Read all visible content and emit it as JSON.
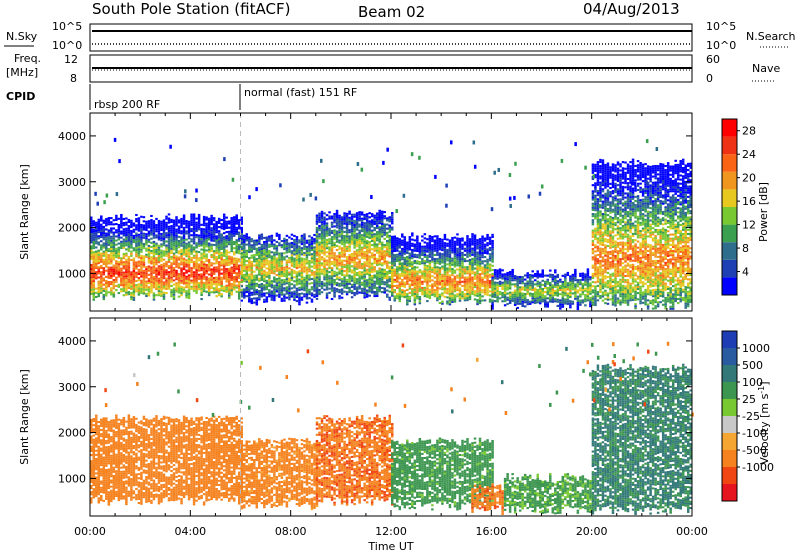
{
  "header": {
    "station": "South Pole Station (fitACF)",
    "beam": "Beam 02",
    "date": "04/Aug/2013"
  },
  "top_panels": {
    "nsky_label": "N.Sky",
    "nsky_ticks": [
      "10^5",
      "10^0"
    ],
    "nsearch_label": "N.Search",
    "nsearch_ticks": [
      "10^5",
      "10^0"
    ],
    "freq_label": "Freq.",
    "freq_unit": "[MHz]",
    "freq_ticks": [
      "12",
      "8"
    ],
    "nave_label": "Nave",
    "nave_ticks": [
      "60",
      "0"
    ],
    "cpid_label": "CPID",
    "cpid_segments": [
      "rbsp 200 RF",
      "normal (fast) 151 RF"
    ]
  },
  "colors": {
    "power_scale": [
      "#0000ff",
      "#1f3fb5",
      "#2e6e8c",
      "#3aa050",
      "#78c832",
      "#e6c81e",
      "#f0961e",
      "#fa6414",
      "#f03214",
      "#ff0000"
    ],
    "velocity_scale": [
      "#e6141e",
      "#f04614",
      "#f5821e",
      "#f5a532",
      "#c8c8c8",
      "#78c832",
      "#3c9650",
      "#327878",
      "#2a5aa0",
      "#1e3cb4"
    ]
  },
  "chart_data": [
    {
      "type": "heatmap",
      "name": "power-panel",
      "ylabel": "Slant Range [km]",
      "xlabel": "Time UT",
      "x_ticks": [
        "00:00",
        "04:00",
        "08:00",
        "12:00",
        "16:00",
        "20:00",
        "00:00"
      ],
      "y_ticks": [
        "1000",
        "2000",
        "3000",
        "4000"
      ],
      "xlim_hours": [
        0,
        24
      ],
      "ylim_km": [
        180,
        4500
      ],
      "colorbar_label": "Power [dB]",
      "colorbar_ticks": [
        "4",
        "8",
        "12",
        "16",
        "20",
        "24",
        "28"
      ],
      "colorbar_range": [
        0,
        30
      ],
      "cpid_change_hour": 6.0,
      "echo_regions": [
        {
          "t0": 0.0,
          "t1": 6.0,
          "r0": 500,
          "r1": 2200,
          "peak_km": 1000,
          "peak_db": 26
        },
        {
          "t0": 6.0,
          "t1": 9.0,
          "r0": 400,
          "r1": 1800,
          "peak_km": 1100,
          "peak_db": 18
        },
        {
          "t0": 9.0,
          "t1": 12.0,
          "r0": 500,
          "r1": 2300,
          "peak_km": 1300,
          "peak_db": 20
        },
        {
          "t0": 12.0,
          "t1": 16.0,
          "r0": 400,
          "r1": 1800,
          "peak_km": 800,
          "peak_db": 22
        },
        {
          "t0": 16.0,
          "t1": 20.0,
          "r0": 300,
          "r1": 1000,
          "peak_km": 600,
          "peak_db": 16
        },
        {
          "t0": 20.0,
          "t1": 24.0,
          "r0": 300,
          "r1": 3400,
          "peak_km": 1300,
          "peak_db": 22
        }
      ]
    },
    {
      "type": "heatmap",
      "name": "velocity-panel",
      "ylabel": "Slant Range [km]",
      "xlabel": "Time UT",
      "x_ticks": [
        "00:00",
        "04:00",
        "08:00",
        "12:00",
        "16:00",
        "20:00",
        "00:00"
      ],
      "y_ticks": [
        "1000",
        "2000",
        "3000",
        "4000"
      ],
      "xlim_hours": [
        0,
        24
      ],
      "ylim_km": [
        180,
        4500
      ],
      "colorbar_label": "Velocity [m s",
      "colorbar_unit_exp": "-1",
      "colorbar_ticks": [
        "1000",
        "500",
        "100",
        "25",
        "-25",
        "-100",
        "-500",
        "-1000"
      ],
      "colorbar_range": [
        -1000,
        1000
      ],
      "echo_regions": [
        {
          "t0": 0.0,
          "t1": 6.0,
          "r0": 500,
          "r1": 2300,
          "velocity": -300
        },
        {
          "t0": 6.0,
          "t1": 9.0,
          "r0": 400,
          "r1": 1800,
          "velocity": -200
        },
        {
          "t0": 9.0,
          "t1": 12.0,
          "r0": 500,
          "r1": 2300,
          "velocity": -400
        },
        {
          "t0": 12.0,
          "t1": 16.0,
          "r0": 400,
          "r1": 1800,
          "velocity": 200
        },
        {
          "t0": 15.2,
          "t1": 16.5,
          "r0": 300,
          "r1": 800,
          "velocity": -400
        },
        {
          "t0": 16.5,
          "t1": 20.0,
          "r0": 300,
          "r1": 1000,
          "velocity": 150
        },
        {
          "t0": 20.0,
          "t1": 24.0,
          "r0": 300,
          "r1": 3400,
          "velocity": 600
        }
      ]
    }
  ]
}
